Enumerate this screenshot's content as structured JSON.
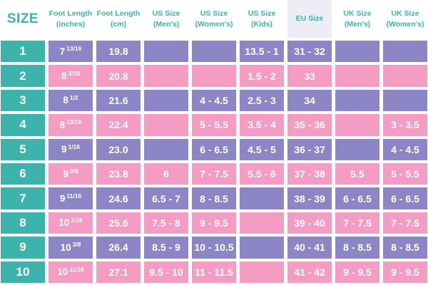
{
  "colors": {
    "teal": "#3CB4AC",
    "purple": "#8C85C6",
    "pink": "#F59CC4",
    "eu_header_bg": "#EDEDF6",
    "header_text": "#3CB4AC",
    "cell_text": "#FFFFFF",
    "background": "#FFFFFF"
  },
  "chart_data": {
    "type": "table",
    "title": "SIZE",
    "legend": "none",
    "grid": "white gaps between solid cells, alternating purple/pink rows, teal size column",
    "columns": [
      {
        "id": "size",
        "label_lines": [
          "SIZE"
        ],
        "highlight": false
      },
      {
        "id": "inches",
        "label_lines": [
          "Foot Length",
          "(inches)"
        ],
        "highlight": false
      },
      {
        "id": "cm",
        "label_lines": [
          "Foot Length",
          "(cm)"
        ],
        "highlight": false
      },
      {
        "id": "us_mens",
        "label_lines": [
          "US Size",
          "(Men's)"
        ],
        "highlight": false
      },
      {
        "id": "us_womens",
        "label_lines": [
          "US Size",
          "(Women's)"
        ],
        "highlight": false
      },
      {
        "id": "us_kids",
        "label_lines": [
          "US Size",
          "(Kids)"
        ],
        "highlight": false
      },
      {
        "id": "eu",
        "label_lines": [
          "EU Size"
        ],
        "highlight": true
      },
      {
        "id": "uk_mens",
        "label_lines": [
          "UK Size",
          "(Men's)"
        ],
        "highlight": false
      },
      {
        "id": "uk_womens",
        "label_lines": [
          "UK Size",
          "(Women's)"
        ],
        "highlight": false
      }
    ],
    "rows": [
      {
        "size": "1",
        "inches_whole": "7",
        "inches_fraction": "13/16",
        "cm": "19.8",
        "us_mens": "",
        "us_womens": "",
        "us_kids": "13.5 - 1",
        "eu": "31 - 32",
        "uk_mens": "",
        "uk_womens": ""
      },
      {
        "size": "2",
        "inches_whole": "8",
        "inches_fraction": "3/16",
        "cm": "20.8",
        "us_mens": "",
        "us_womens": "",
        "us_kids": "1.5 - 2",
        "eu": "33",
        "uk_mens": "",
        "uk_womens": ""
      },
      {
        "size": "3",
        "inches_whole": "8",
        "inches_fraction": "1/2",
        "cm": "21.6",
        "us_mens": "",
        "us_womens": "4 - 4.5",
        "us_kids": "2.5 - 3",
        "eu": "34",
        "uk_mens": "",
        "uk_womens": ""
      },
      {
        "size": "4",
        "inches_whole": "8",
        "inches_fraction": "13/16",
        "cm": "22.4",
        "us_mens": "",
        "us_womens": "5 - 5.5",
        "us_kids": "3.5 - 4",
        "eu": "35 - 36",
        "uk_mens": "",
        "uk_womens": "3 - 3.5"
      },
      {
        "size": "5",
        "inches_whole": "9",
        "inches_fraction": "1/16",
        "cm": "23.0",
        "us_mens": "",
        "us_womens": "6 - 6.5",
        "us_kids": "4.5 - 5",
        "eu": "36 - 37",
        "uk_mens": "",
        "uk_womens": "4 - 4.5"
      },
      {
        "size": "6",
        "inches_whole": "9",
        "inches_fraction": "3/8",
        "cm": "23.8",
        "us_mens": "6",
        "us_womens": "7 - 7.5",
        "us_kids": "5.5 - 6",
        "eu": "37 - 38",
        "uk_mens": "5.5",
        "uk_womens": "5 - 5.5"
      },
      {
        "size": "7",
        "inches_whole": "9",
        "inches_fraction": "11/16",
        "cm": "24.6",
        "us_mens": "6.5 - 7",
        "us_womens": "8 - 8.5",
        "us_kids": "",
        "eu": "38 - 39",
        "uk_mens": "6 - 6.5",
        "uk_womens": "6 - 6.5"
      },
      {
        "size": "8",
        "inches_whole": "10",
        "inches_fraction": "1/16",
        "cm": "25.6",
        "us_mens": "7.5 - 8",
        "us_womens": "9 - 9.5",
        "us_kids": "",
        "eu": "39 - 40",
        "uk_mens": "7 - 7.5",
        "uk_womens": "7 - 7.5"
      },
      {
        "size": "9",
        "inches_whole": "10",
        "inches_fraction": "3/8",
        "cm": "26.4",
        "us_mens": "8.5 - 9",
        "us_womens": "10 - 10.5",
        "us_kids": "",
        "eu": "40 - 41",
        "uk_mens": "8 - 8.5",
        "uk_womens": "8 - 8.5"
      },
      {
        "size": "10",
        "inches_whole": "10",
        "inches_fraction": "11/16",
        "cm": "27.1",
        "us_mens": "9.5 - 10",
        "us_womens": "11 - 11.5",
        "us_kids": "",
        "eu": "41 - 42",
        "uk_mens": "9 - 9.5",
        "uk_womens": "9 - 9.5"
      }
    ]
  }
}
